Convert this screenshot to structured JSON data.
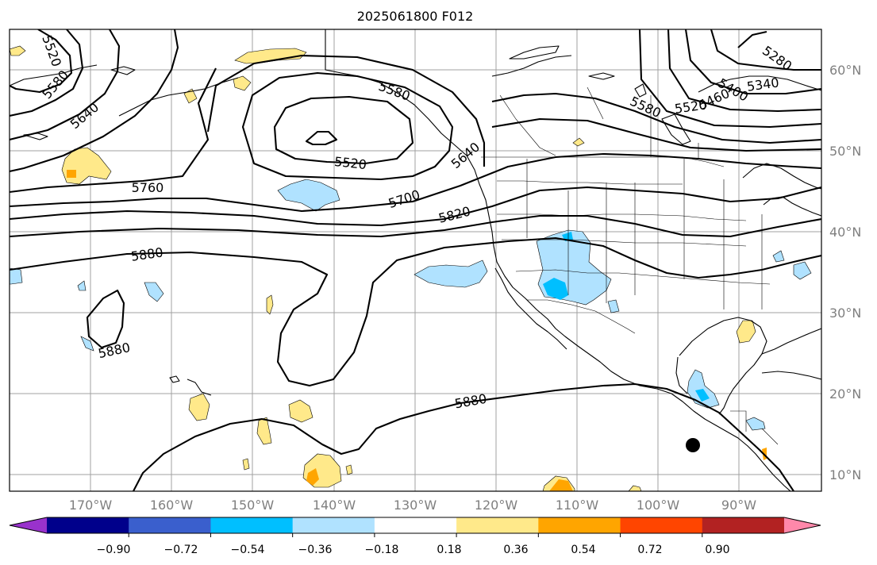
{
  "title": "2025061800 F012",
  "lat_labels": [
    "60°N",
    "50°N",
    "40°N",
    "30°N",
    "20°N",
    "10°N"
  ],
  "lon_labels": [
    "170°W",
    "160°W",
    "150°W",
    "140°W",
    "130°W",
    "120°W",
    "110°W",
    "100°W",
    "90°W"
  ],
  "contour_labels": [
    "5520",
    "5580",
    "5640",
    "5520",
    "5580",
    "5760",
    "5700",
    "5820",
    "5880",
    "5880",
    "5880",
    "5520",
    "5580",
    "5460",
    "5400",
    "5340",
    "5280",
    "5640"
  ],
  "colorbar": {
    "colors": [
      "#9932cc",
      "#00008b",
      "#3a5fcd",
      "#00bfff",
      "#b0e2ff",
      "#ffffff",
      "#ffe98a",
      "#ffa500",
      "#ff4500",
      "#b22222",
      "#ff88aa"
    ],
    "tick_labels": [
      "−0.90",
      "−0.72",
      "−0.54",
      "−0.36",
      "−0.18",
      "0.18",
      "0.36",
      "0.54",
      "0.72",
      "0.90"
    ]
  },
  "colors": {
    "land_outline": "#000000",
    "gridline": "#a0a0a0",
    "contour": "#000000",
    "positive_light": "#ffe98a",
    "positive_mid": "#ffa500",
    "negative_light": "#b0e2ff",
    "negative_mid": "#00bfff"
  }
}
